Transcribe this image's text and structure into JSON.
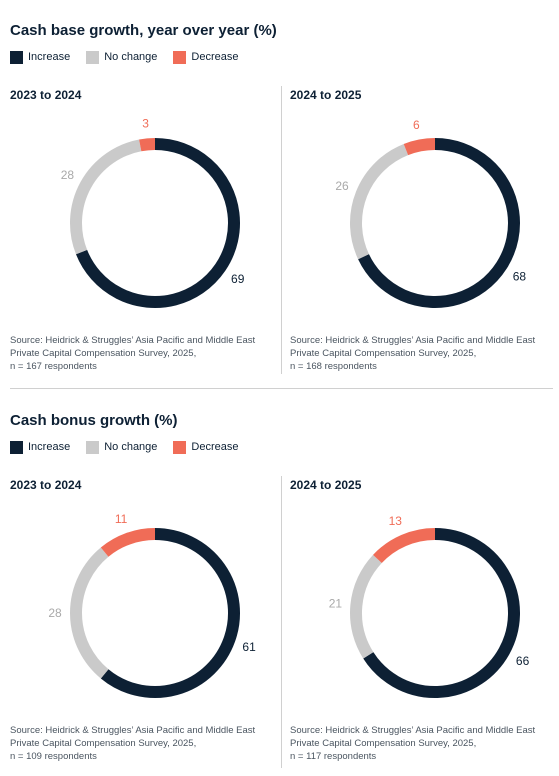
{
  "colors": {
    "increase": "#0d2034",
    "no_change": "#cacaca",
    "decrease": "#f06c57",
    "text": "#0d2034",
    "muted_label": "#a9a9a9"
  },
  "legend": {
    "increase": "Increase",
    "no_change": "No change",
    "decrease": "Decrease"
  },
  "sections": [
    {
      "title": "Cash base growth, year over year (%)",
      "panels": [
        {
          "title": "2023 to 2024",
          "source": "Source: Heidrick & Struggles’ Asia Pacific and Middle East Private Capital Compensation Survey, 2025,",
          "n": "n = 167 respondents"
        },
        {
          "title": "2024 to 2025",
          "source": "Source: Heidrick & Struggles’ Asia Pacific and Middle East Private Capital Compensation Survey, 2025,",
          "n": "n = 168 respondents"
        }
      ]
    },
    {
      "title": "Cash bonus growth (%)",
      "panels": [
        {
          "title": "2023 to 2024",
          "source": "Source: Heidrick & Struggles’ Asia Pacific and Middle East Private Capital Compensation Survey, 2025,",
          "n": "n = 109 respondents"
        },
        {
          "title": "2024 to 2025",
          "source": "Source: Heidrick & Struggles’ Asia Pacific and Middle East Private Capital Compensation Survey, 2025,",
          "n": "n = 117 respondents"
        }
      ]
    }
  ],
  "chart_data": [
    {
      "type": "pie",
      "title": "2023 to 2024",
      "categories": [
        "Increase",
        "No change",
        "Decrease"
      ],
      "values": [
        69,
        28,
        3
      ]
    },
    {
      "type": "pie",
      "title": "2024 to 2025",
      "categories": [
        "Increase",
        "No change",
        "Decrease"
      ],
      "values": [
        68,
        26,
        6
      ]
    },
    {
      "type": "pie",
      "title": "2023 to 2024",
      "categories": [
        "Increase",
        "No change",
        "Decrease"
      ],
      "values": [
        61,
        28,
        11
      ]
    },
    {
      "type": "pie",
      "title": "2024 to 2025",
      "categories": [
        "Increase",
        "No change",
        "Decrease"
      ],
      "values": [
        66,
        21,
        13
      ]
    }
  ]
}
